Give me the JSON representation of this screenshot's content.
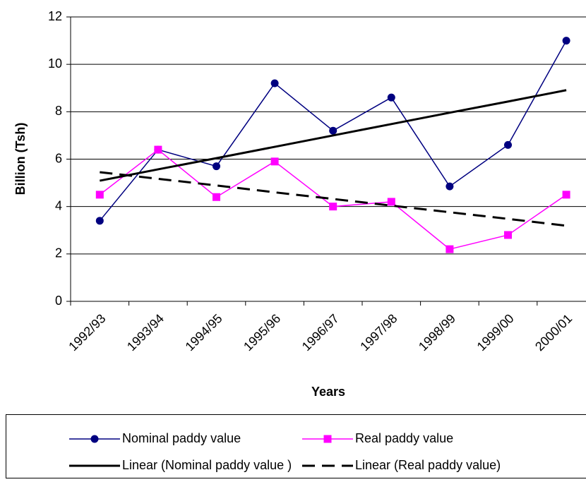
{
  "chart_data": {
    "type": "line",
    "ylabel": "Billion (Tsh)",
    "xlabel": "Years",
    "categories": [
      "1992/93",
      "1993/94",
      "1994/95",
      "1995/96",
      "1996/97",
      "1997/98",
      "1998/99",
      "1999/00",
      "2000/01"
    ],
    "series": [
      {
        "name": "Nominal paddy value",
        "color": "#000080",
        "marker": "circle",
        "values": [
          3.4,
          6.4,
          5.7,
          9.2,
          7.2,
          8.6,
          4.85,
          6.6,
          11.0
        ]
      },
      {
        "name": "Real paddy value",
        "color": "#ff00ff",
        "marker": "square",
        "values": [
          4.5,
          6.4,
          4.4,
          5.9,
          4.0,
          4.2,
          2.2,
          2.8,
          4.5
        ]
      },
      {
        "name": "Linear (Nominal paddy value )",
        "color": "#000000",
        "style": "solid",
        "values": [
          5.09,
          5.57,
          6.04,
          6.52,
          7.0,
          7.48,
          7.96,
          8.43,
          8.91
        ]
      },
      {
        "name": "Linear (Real paddy value)",
        "color": "#000000",
        "style": "dashed",
        "values": [
          5.45,
          5.17,
          4.89,
          4.6,
          4.32,
          4.04,
          3.76,
          3.48,
          3.19
        ]
      }
    ],
    "ylim": [
      0,
      12
    ],
    "yticks": [
      0,
      2,
      4,
      6,
      8,
      10,
      12
    ],
    "grid": true,
    "legend": "bottom"
  }
}
